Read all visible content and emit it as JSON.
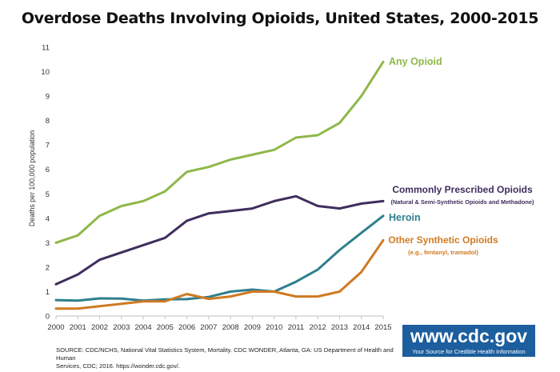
{
  "chart_data": {
    "type": "line",
    "title": "Overdose Deaths Involving Opioids, United States, 2000-2015",
    "xlabel": "",
    "ylabel": "Deaths per 100,000 population",
    "ylim": [
      0,
      11
    ],
    "x": [
      2000,
      2001,
      2002,
      2003,
      2004,
      2005,
      2006,
      2007,
      2008,
      2009,
      2010,
      2011,
      2012,
      2013,
      2014,
      2015
    ],
    "y_ticks": [
      0,
      1,
      2,
      3,
      4,
      5,
      6,
      7,
      8,
      9,
      10,
      11
    ],
    "grid": false,
    "series": [
      {
        "name": "Any Opioid",
        "color": "#8fb84a",
        "values": [
          3.0,
          3.3,
          4.1,
          4.5,
          4.7,
          5.1,
          5.9,
          6.1,
          6.4,
          6.6,
          6.8,
          7.3,
          7.4,
          7.9,
          9.0,
          10.4
        ],
        "label_lines": [
          "Any Opioid"
        ]
      },
      {
        "name": "Commonly Prescribed Opioids",
        "color": "#3f2e5e",
        "values": [
          1.3,
          1.7,
          2.3,
          2.6,
          2.9,
          3.2,
          3.9,
          4.2,
          4.3,
          4.4,
          4.7,
          4.9,
          4.5,
          4.4,
          4.6,
          4.7
        ],
        "label_lines": [
          "Commonly Prescribed Opioids",
          "(Natural & Semi-Synthetic Opioids and Methadone)"
        ]
      },
      {
        "name": "Heroin",
        "color": "#2e7f8e",
        "values": [
          0.65,
          0.63,
          0.72,
          0.71,
          0.63,
          0.68,
          0.69,
          0.78,
          1.0,
          1.08,
          1.0,
          1.4,
          1.9,
          2.7,
          3.4,
          4.1
        ],
        "label_lines": [
          "Heroin"
        ]
      },
      {
        "name": "Other Synthetic Opioids",
        "color": "#d07a22",
        "values": [
          0.3,
          0.3,
          0.4,
          0.5,
          0.6,
          0.6,
          0.9,
          0.7,
          0.8,
          1.0,
          1.0,
          0.8,
          0.8,
          1.0,
          1.8,
          3.1
        ],
        "label_lines": [
          "Other Synthetic Opioids",
          "(e.g., fentanyl, tramadol)"
        ]
      }
    ]
  },
  "footer": {
    "source_line1": "SOURCE: CDC/NCHS, National Vital Statistics System, Mortality. CDC WONDER, Atlanta, GA: US Department of Health and Human",
    "source_line2": "Services, CDC; 2016. https://wonder.cdc.gov/."
  },
  "logo": {
    "url": "www.cdc.gov",
    "tagline": "Your Source for Credible Health Information",
    "background": "#1c5e9e"
  }
}
